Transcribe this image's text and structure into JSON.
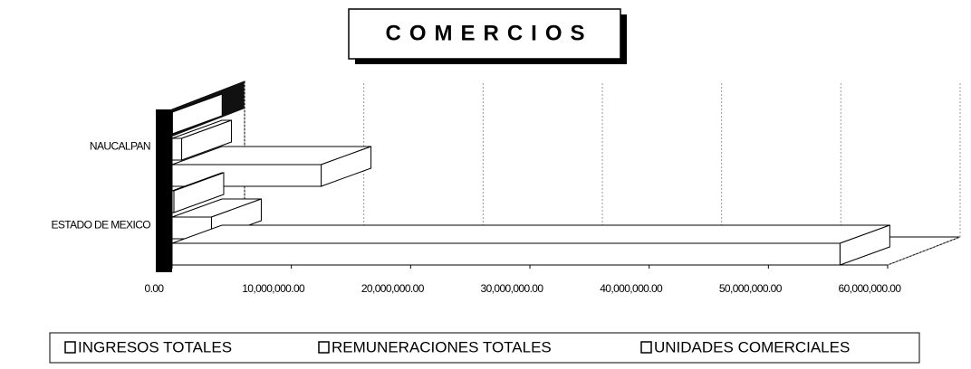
{
  "chart_data": {
    "type": "bar3d-horizontal",
    "title": "COMERCIOS",
    "categories": [
      "NAUCALPAN",
      "ESTADO DE MEXICO"
    ],
    "series": [
      {
        "name": "INGRESOS TOTALES",
        "color": "#ffffff",
        "values": [
          12500000,
          56000000
        ]
      },
      {
        "name": "REMUNERACIONES TOTALES",
        "color": "#ffffff",
        "values": [
          800000,
          3300000
        ]
      },
      {
        "name": "UNIDADES COMERCIALES",
        "color": "#ffffff",
        "values": [
          20000,
          150000
        ]
      }
    ],
    "xlim": [
      0,
      60000000
    ],
    "xticks": [
      {
        "value": 0,
        "label": "0.00"
      },
      {
        "value": 10000000,
        "label": "10,000,000.00"
      },
      {
        "value": 20000000,
        "label": "20,000,000.00"
      },
      {
        "value": 30000000,
        "label": "30,000,000.00"
      },
      {
        "value": 40000000,
        "label": "40,000,000.00"
      },
      {
        "value": 50000000,
        "label": "50,000,000.00"
      },
      {
        "value": 60000000,
        "label": "60,000,000.00"
      }
    ],
    "grid": true,
    "legend": "bottom"
  }
}
